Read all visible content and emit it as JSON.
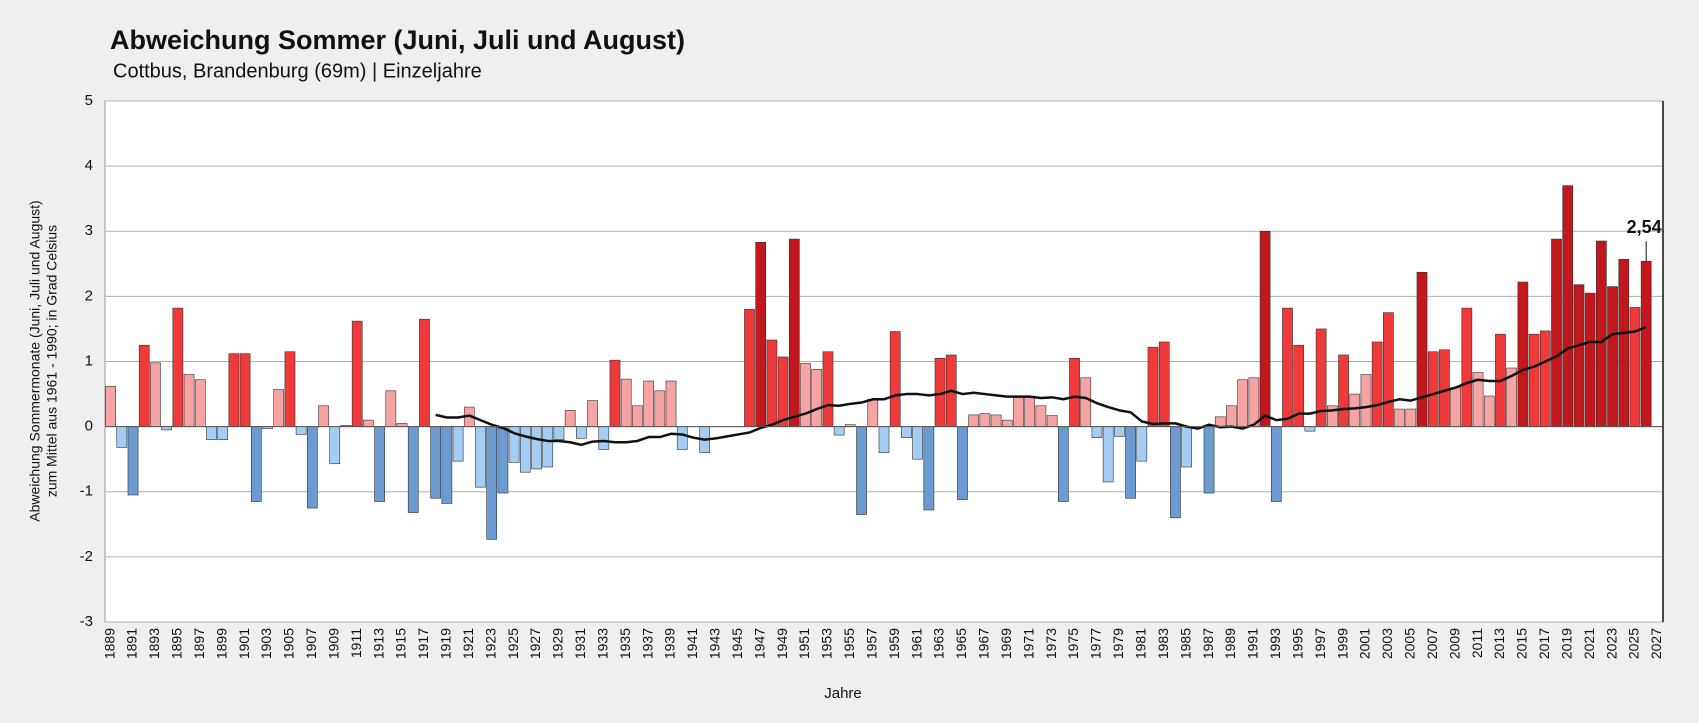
{
  "chart_data": {
    "type": "bar",
    "title": "Abweichung Sommer (Juni, Juli und August)",
    "subtitle": "Cottbus, Brandenburg (69m) | Einzeljahre",
    "y_label": [
      "Abweichung Sommermonate (Juni, Juli und August)",
      "zum Mittel aus 1961 - 1990; in Grad Celsius"
    ],
    "x_label": "Jahre",
    "categories": [
      "1889",
      null,
      "1891",
      null,
      "1893",
      null,
      "1895",
      null,
      "1897",
      null,
      "1899",
      null,
      "1901",
      null,
      "1903",
      null,
      "1905",
      null,
      "1907",
      null,
      "1909",
      null,
      "1911",
      null,
      "1913",
      null,
      "1915",
      null,
      "1917",
      null,
      "1919",
      null,
      "1921",
      null,
      "1923",
      null,
      "1925",
      null,
      "1927",
      null,
      "1929",
      null,
      "1931",
      null,
      "1933",
      null,
      "1935",
      null,
      "1937",
      null,
      "1939",
      null,
      "1941",
      null,
      "1943",
      null,
      "1945",
      null,
      "1947",
      null,
      "1949",
      null,
      "1951",
      null,
      "1953",
      null,
      "1955",
      null,
      "1957",
      null,
      "1959",
      null,
      "1961",
      null,
      "1963",
      null,
      "1965",
      null,
      "1967",
      null,
      "1969",
      null,
      "1971",
      null,
      "1973",
      null,
      "1975",
      null,
      "1977",
      null,
      "1979",
      null,
      "1981",
      null,
      "1983",
      null,
      "1985",
      null,
      "1987",
      null,
      "1989",
      null,
      "1991",
      null,
      "1993",
      null,
      "1995",
      null,
      "1997",
      null,
      "1999",
      null,
      "2001",
      null,
      "2003",
      null,
      "2005",
      null,
      "2007",
      null,
      "2009",
      null,
      "2011",
      null,
      "2013",
      null,
      "2015",
      null,
      "2017",
      null,
      "2019",
      null,
      "2021",
      null,
      "2023",
      null,
      "2025",
      null,
      "2027"
    ],
    "series": [
      {
        "type": "bar",
        "palette": [
          "#6b9bd1",
          "#a3cdf2",
          "#f5a3a3",
          "#f03a3a",
          "#c0181c"
        ],
        "values": [
          0.62,
          -0.32,
          -1.05,
          1.25,
          0.98,
          -0.05,
          1.82,
          0.8,
          0.72,
          -0.2,
          -0.2,
          1.12,
          1.12,
          -1.15,
          -0.03,
          0.57,
          1.15,
          -0.12,
          -1.25,
          0.32,
          -0.57,
          0.02,
          1.62,
          0.1,
          -1.15,
          0.55,
          0.05,
          -1.32,
          1.65,
          -1.1,
          -1.18,
          -0.53,
          0.3,
          -0.93,
          -1.73,
          -1.02,
          -0.55,
          -0.7,
          -0.65,
          -0.62,
          -0.2,
          0.25,
          -0.18,
          0.4,
          -0.35,
          1.02,
          0.73,
          0.32,
          0.7,
          0.55,
          0.7,
          -0.35,
          0,
          -0.4,
          null,
          null,
          null,
          1.8,
          2.83,
          1.33,
          1.07,
          2.88,
          0.97,
          0.88,
          1.15,
          -0.13,
          0.03,
          -1.35,
          0.42,
          -0.4,
          1.46,
          -0.17,
          -0.5,
          -1.28,
          1.05,
          1.1,
          -1.12,
          0.18,
          0.2,
          0.18,
          0.1,
          0.47,
          0.45,
          0.32,
          0.17,
          -1.15,
          1.05,
          0.75,
          -0.17,
          -0.85,
          -0.15,
          -1.1,
          -0.53,
          1.22,
          1.3,
          -1.4,
          -0.62,
          0,
          -1.02,
          0.15,
          0.32,
          0.72,
          0.75,
          3.0,
          -1.15,
          1.82,
          1.25,
          -0.07,
          1.5,
          0.32,
          1.1,
          0.5,
          0.8,
          1.3,
          1.75,
          0.27,
          0.27,
          2.37,
          1.15,
          1.18,
          0.6,
          1.82,
          0.83,
          0.47,
          1.42,
          0.9,
          2.22,
          1.42,
          1.47,
          2.88,
          3.7,
          2.18,
          2.05,
          2.85,
          2.15,
          2.57,
          1.83,
          2.54,
          null
        ],
        "value_labels": [
          null,
          null,
          null,
          null,
          null,
          null,
          null,
          null,
          null,
          null,
          null,
          null,
          null,
          null,
          null,
          null,
          null,
          null,
          null,
          null,
          null,
          null,
          null,
          null,
          null,
          null,
          null,
          null,
          null,
          null,
          null,
          null,
          null,
          null,
          null,
          null,
          null,
          null,
          null,
          null,
          null,
          null,
          null,
          null,
          null,
          null,
          null,
          null,
          null,
          null,
          null,
          null,
          null,
          null,
          null,
          null,
          null,
          null,
          null,
          null,
          null,
          null,
          null,
          null,
          null,
          null,
          null,
          null,
          null,
          null,
          null,
          null,
          null,
          null,
          null,
          null,
          null,
          null,
          null,
          null,
          null,
          null,
          null,
          null,
          null,
          null,
          null,
          null,
          null,
          null,
          null,
          null,
          null,
          null,
          null,
          null,
          null,
          null,
          null,
          null,
          null,
          null,
          null,
          null,
          null,
          null,
          null,
          null,
          null,
          null,
          null,
          null,
          null,
          null,
          null,
          null,
          null,
          null,
          null,
          null,
          null,
          null,
          null,
          null,
          null,
          null,
          null,
          null,
          null,
          null,
          null,
          null,
          null,
          null,
          null,
          null,
          null,
          "2,54",
          null
        ]
      },
      {
        "type": "line",
        "color": "#111111",
        "values": [
          null,
          null,
          null,
          null,
          null,
          null,
          null,
          null,
          null,
          null,
          null,
          null,
          null,
          null,
          null,
          null,
          null,
          null,
          null,
          null,
          null,
          null,
          null,
          null,
          null,
          null,
          null,
          null,
          null,
          0.18,
          0.14,
          0.14,
          0.17,
          0.1,
          0.03,
          -0.02,
          -0.1,
          -0.15,
          -0.19,
          -0.22,
          -0.22,
          -0.24,
          -0.28,
          -0.23,
          -0.22,
          -0.24,
          -0.24,
          -0.22,
          -0.16,
          -0.16,
          -0.11,
          -0.12,
          -0.17,
          -0.2,
          -0.18,
          -0.15,
          -0.12,
          -0.09,
          -0.02,
          0.03,
          0.1,
          0.15,
          0.2,
          0.27,
          0.33,
          0.32,
          0.35,
          0.37,
          0.42,
          0.42,
          0.48,
          0.5,
          0.5,
          0.48,
          0.5,
          0.55,
          0.5,
          0.52,
          0.5,
          0.48,
          0.46,
          0.46,
          0.46,
          0.44,
          0.45,
          0.42,
          0.46,
          0.44,
          0.36,
          0.3,
          0.25,
          0.22,
          0.08,
          0.04,
          0.05,
          0.05,
          0.0,
          -0.03,
          0.03,
          -0.01,
          0.0,
          -0.03,
          0.03,
          0.17,
          0.1,
          0.12,
          0.2,
          0.2,
          0.24,
          0.25,
          0.27,
          0.28,
          0.3,
          0.33,
          0.38,
          0.42,
          0.4,
          0.45,
          0.5,
          0.55,
          0.6,
          0.67,
          0.72,
          0.7,
          0.7,
          0.78,
          0.87,
          0.92,
          1.0,
          1.08,
          1.2,
          1.25,
          1.3,
          1.3,
          1.42,
          1.44,
          1.46,
          1.53,
          null
        ]
      }
    ],
    "ylim": [
      -3,
      5
    ],
    "yticks": [
      -3,
      -2,
      -1,
      0,
      1,
      2,
      3,
      4,
      5
    ],
    "grid": true
  }
}
